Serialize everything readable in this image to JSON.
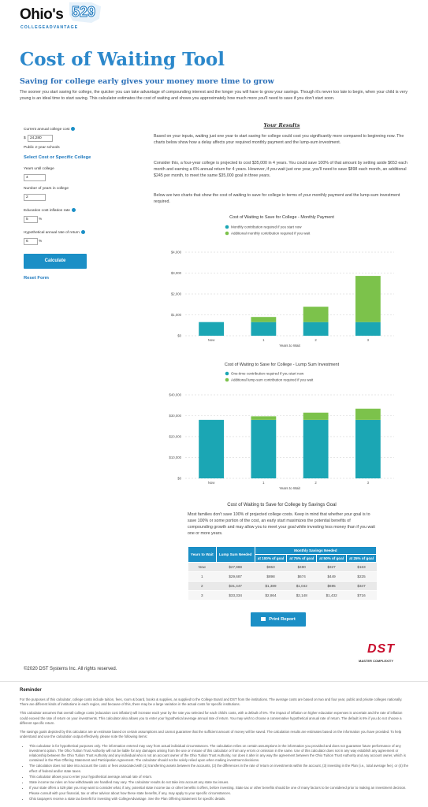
{
  "header": {
    "logo_text": "Ohio's",
    "logo_number": "529",
    "logo_tagline": "COLLEGEADVANTAGE"
  },
  "title": "Cost of Waiting Tool",
  "subtitle": "Saving for college early gives your money more time to grow",
  "intro": "The sooner you start saving for college, the quicker you can take advantage of compounding interest and the longer you will have to grow your savings. Though it's never too late to begin, when your child is very young is an ideal time to start saving. This calculator estimates the cost of waiting and shows you approximately how much more you'll need to save if you don't start soon.",
  "form": {
    "cost_label": "Current annual college cost",
    "cost_prefix": "$",
    "cost_value": "24,280",
    "school_type": "Public 2-year schools",
    "select_link": "Select Cost or Specific College",
    "years_label": "Years until college",
    "years_value": "4",
    "college_years_label": "Number of years in college",
    "college_years_value": "2",
    "inflation_label": "Education cost inflation rate",
    "inflation_value": "5",
    "inflation_suffix": "%",
    "return_label": "Hypothetical annual rate of return",
    "return_value": "6",
    "return_suffix": "%",
    "calculate": "Calculate",
    "reset": "Reset Form"
  },
  "results": {
    "heading": "Your Results",
    "paragraphs": [
      "Based on your inputs, waiting just one year to start saving for college could cost you significantly more compared to beginning now. The charts below show how a delay affects your required monthly payment and the lump-sum investment.",
      "Consider this, a four-year college is projected to cost $35,000 in 4 years. You could save 100% of that amount by setting aside $653 each month and earning a 6% annual return for 4 years. However, if you wait just one year, you'll need to save $898 each month, an additional $245 per month, to meet the same $35,000 goal in three years.",
      "Below are two charts that show the cost of waiting to save for college in terms of your monthly payment and the lump-sum investment required."
    ]
  },
  "chart_data": [
    {
      "type": "bar",
      "stacked": true,
      "title": "Cost of Waiting to Save for College - Monthly Payment",
      "categories": [
        "Now",
        "1",
        "2",
        "3"
      ],
      "x_label": "Years to Wait",
      "series": [
        {
          "name": "Monthly contribution required if you start now",
          "color": "#1ba6b4",
          "values": [
            653,
            653,
            653,
            653
          ]
        },
        {
          "name": "Additional monthly contribution required if you wait",
          "color": "#7cc24b",
          "values": [
            null,
            245,
            736,
            2211
          ]
        }
      ],
      "ylim": [
        0,
        4000
      ],
      "yticks": [
        {
          "value": 0,
          "label": "$0"
        },
        {
          "value": 1000,
          "label": "$1,000"
        },
        {
          "value": 2000,
          "label": "$2,000"
        },
        {
          "value": 3000,
          "label": "$3,000"
        },
        {
          "value": 4000,
          "label": "$4,000"
        }
      ],
      "grid": true,
      "legend": "top"
    },
    {
      "type": "bar",
      "stacked": true,
      "title": "Cost of Waiting to Save for College - Lump Sum Investment",
      "categories": [
        "Now",
        "1",
        "2",
        "3"
      ],
      "x_label": "Years to Wait",
      "series": [
        {
          "name": "One-time contribution required if you start now",
          "color": "#1ba6b4",
          "values": [
            27988,
            27988,
            27988,
            27988
          ]
        },
        {
          "name": "Additional lump-sum contribution required if you wait",
          "color": "#7cc24b",
          "values": [
            null,
            1699,
            3459,
            5346
          ]
        }
      ],
      "ylim": [
        0,
        40000
      ],
      "yticks": [
        {
          "value": 0,
          "label": "$0"
        },
        {
          "value": 10000,
          "label": "$10,000"
        },
        {
          "value": 20000,
          "label": "$20,000"
        },
        {
          "value": 30000,
          "label": "$30,000"
        },
        {
          "value": 40000,
          "label": "$40,000"
        }
      ],
      "grid": true,
      "legend": "top"
    }
  ],
  "goal_section": {
    "title": "Cost of Waiting to Save for College by Savings Goal",
    "paragraph": "Most families don't save 100% of projected college costs. Keep in mind that whether your goal is to save 100% or some portion of the cost, an early start maximizes the potential benefits of compounding growth and may allow you to meet your goal while investing less money than if you wait one or more years."
  },
  "table": {
    "headers": [
      "Years to Wait",
      "Lump Sum Needed",
      "Monthly Savings Needed",
      "at 100% of goal",
      "at 75% of goal",
      "at 50% of goal",
      "at 25% of goal"
    ],
    "rows": [
      [
        "Now",
        "$27,988",
        "$653",
        "$490",
        "$327",
        "$163"
      ],
      [
        "1",
        "$29,687",
        "$898",
        "$674",
        "$449",
        "$225"
      ],
      [
        "2",
        "$31,447",
        "$1,389",
        "$1,042",
        "$695",
        "$347"
      ],
      [
        "3",
        "$33,334",
        "$2,864",
        "$2,148",
        "$1,432",
        "$716"
      ]
    ]
  },
  "print_button": "Print Report",
  "footer": {
    "copyright": "©2020 DST Systems Inc. All rights reserved.",
    "brand": "DST",
    "slogan": "MASTER COMPLEXITY"
  },
  "reminder": {
    "heading": "Reminder",
    "paragraphs": [
      "For the purposes of this calculator, college costs include tuition, fees, room & board, books & supplies, as supplied to the College Board and DST from the institutions. The average costs are based on two and four year, public and private colleges nationally. There are different kinds of institutions in each region, and because of this, there may be a large variation in the actual costs for specific institutions.",
      "This calculator assumes that overall college costs (education cost inflation) will increase each year by the rate you selected for each child's costs, with a default of 5%. The impact of inflation on higher education expenses is uncertain and the rate of inflation could exceed the rate of return on your investments. This calculator also allows you to enter your hypothetical average annual rate of return. You may wish to choose a conservative hypothetical annual rate of return. The default is 6% if you do not choose a different specific return.",
      "The savings goals depicted by this calculator are an estimate based on certain assumptions and cannot guarantee that the sufficient amount of money will be saved. The calculation results are estimates based on the information you have provided. To help understand and use the calculation output effectively, please note the following items:"
    ],
    "bullets": [
      "This calculator is for hypothetical purposes only. The information entered may vary from actual individual circumstances. The calculation relies on certain assumptions in the information you provided and does not guarantee future performance of any investment option. The Ohio Tuition Trust Authority will not be liable for any damages arising from the use or misuse of this calculator or from any errors or omission in the same. Use of this calculator does not in any way establish any agreement or relationship between the Ohio Tuition Trust Authority and any individual who is not an account owner of the Ohio Tuition Trust Authority, nor does it alter in any way the agreement between the Ohio Tuition Trust Authority and any account owner, which is contained in the Plan Offering Statement and Participation Agreement. The calculator should not be solely relied upon when making investment decisions.",
      "The calculation does not take into account the costs or fees associated with (1) transferring assets between the accounts, (2) the differences in the rate of return on investments within the account, (3) investing in the Plan (i.e., total average fee), or (4) the effect of federal and/or state taxes.",
      "This calculator allows you to enter your hypothetical average annual rate of return.",
      "State income tax rules on how withdrawals are handled may vary. The calculator results do not take into account any state tax issues.",
      "If your state offers a 529 plan you may want to consider what, if any, potential state income tax or other benefits it offers, before investing. State tax or other benefits should be one of many factors to be considered prior to making an investment decision. Please consult with your financial, tax or other advisor about how these state benefits, if any, may apply to your specific circumstances.",
      "Ohio taxpayers receive a state tax benefit for investing with CollegeAdvantage. See the Plan Offering Statement for specific details."
    ]
  }
}
